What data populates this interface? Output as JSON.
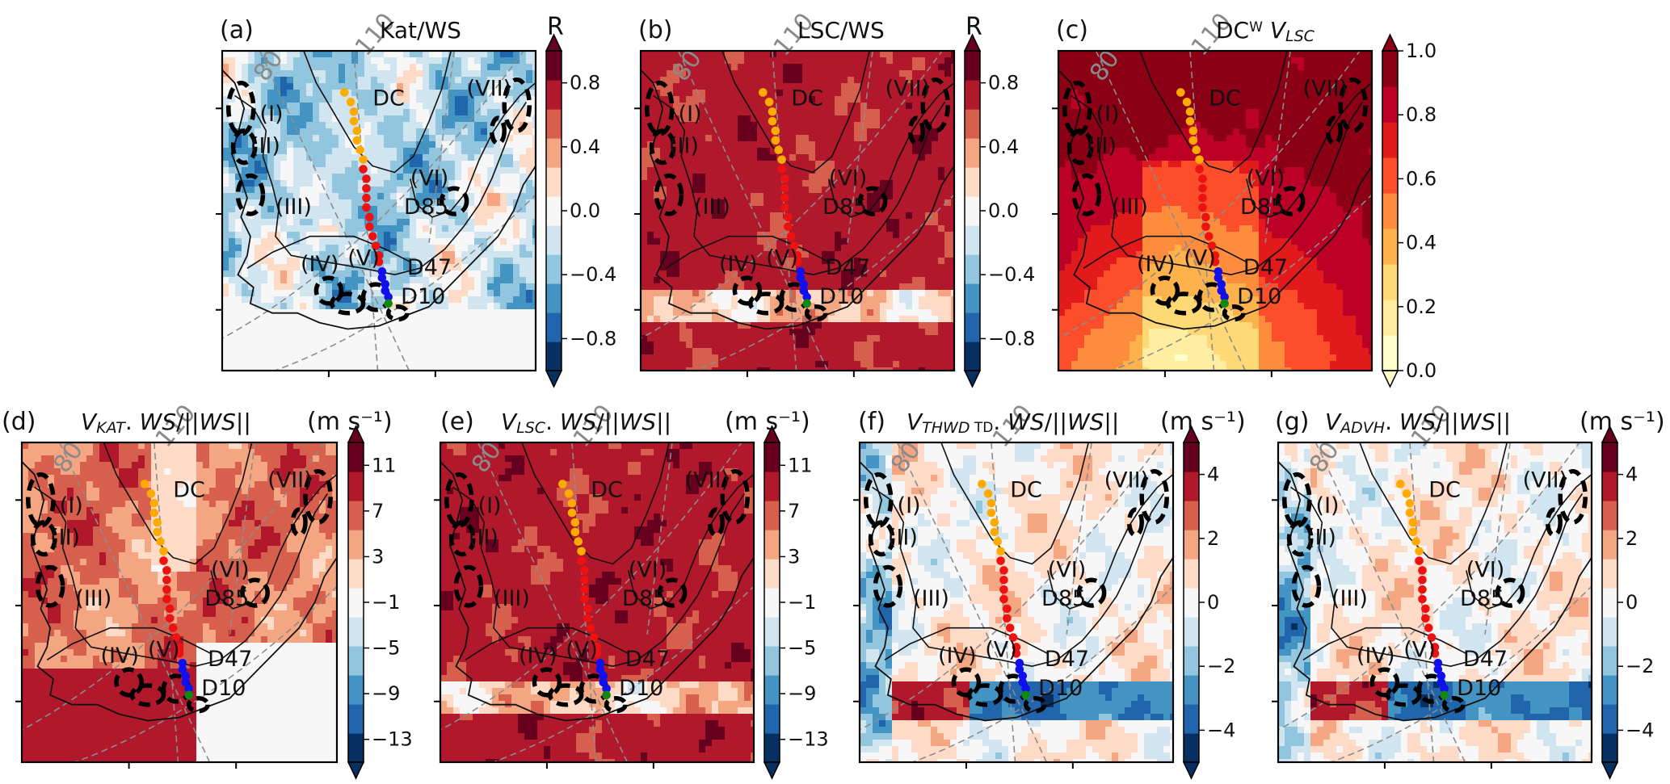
{
  "figure": {
    "panels": [
      {
        "letter": "(a)",
        "title": "Kat/WS",
        "title_segments": [
          {
            "t": "Kat/WS",
            "style": "plain"
          }
        ],
        "colorbar": {
          "label": "R",
          "ticks": [
            "0.8",
            "0.4",
            "0.0",
            "−0.4",
            "−0.8"
          ],
          "extend": "both",
          "cmap": "RdBu_r"
        },
        "field_mode": "weak"
      },
      {
        "letter": "(b)",
        "title": "LSC/WS",
        "title_segments": [
          {
            "t": "LSC/WS",
            "style": "plain"
          }
        ],
        "colorbar": {
          "label": "R",
          "ticks": [
            "0.8",
            "0.4",
            "0.0",
            "−0.4",
            "−0.8"
          ],
          "extend": "both",
          "cmap": "RdBu_r"
        },
        "field_mode": "strong"
      },
      {
        "letter": "(c)",
        "title": "DCʷ V_LSC",
        "title_segments": [
          {
            "t": "DC",
            "style": "plain"
          },
          {
            "t": "W",
            "style": "sup"
          },
          {
            "t": " V",
            "style": "italic"
          },
          {
            "t": "LSC",
            "style": "italic-sub"
          }
        ],
        "colorbar": {
          "label": "",
          "ticks": [
            "1.0",
            "0.8",
            "0.6",
            "0.4",
            "0.2",
            "0.0"
          ],
          "extend": "both",
          "cmap": "YlOrRd"
        },
        "field_mode": "yellow"
      },
      {
        "letter": "(d)",
        "title": "V_KAT⃗ . WS⃗ /||WS⃗||",
        "title_segments": [
          {
            "t": "V",
            "style": "italic"
          },
          {
            "t": "KAT",
            "style": "italic-sub"
          },
          {
            "t": ". ",
            "style": "plain"
          },
          {
            "t": "WS",
            "style": "italic"
          },
          {
            "t": "/||",
            "style": "plain"
          },
          {
            "t": "WS",
            "style": "italic"
          },
          {
            "t": "||",
            "style": "plain"
          }
        ],
        "colorbar": {
          "label": "(m s⁻¹)",
          "ticks": [
            "11",
            "7",
            "3",
            "−1",
            "−5",
            "−9",
            "−13"
          ],
          "extend": "both",
          "cmap": "RdBu_r"
        },
        "field_mode": "katabatic"
      },
      {
        "letter": "(e)",
        "title": "V_LSC⃗ . WS⃗ /||WS⃗||",
        "title_segments": [
          {
            "t": "V",
            "style": "italic"
          },
          {
            "t": "LSC",
            "style": "italic-sub"
          },
          {
            "t": ". ",
            "style": "plain"
          },
          {
            "t": "WS",
            "style": "italic"
          },
          {
            "t": "/||",
            "style": "plain"
          },
          {
            "t": "WS",
            "style": "italic"
          },
          {
            "t": "||",
            "style": "plain"
          }
        ],
        "colorbar": {
          "label": "(m s⁻¹)",
          "ticks": [
            "11",
            "7",
            "3",
            "−1",
            "−5",
            "−9",
            "−13"
          ],
          "extend": "both",
          "cmap": "RdBu_r"
        },
        "field_mode": "strong"
      },
      {
        "letter": "(f)",
        "title": "V_THWD TD⃗ . WS⃗ /||WS⃗||",
        "title_segments": [
          {
            "t": "V",
            "style": "italic"
          },
          {
            "t": "THWD",
            "style": "italic-sub"
          },
          {
            "t": " TD",
            "style": "sub"
          },
          {
            "t": ". ",
            "style": "plain"
          },
          {
            "t": "WS",
            "style": "italic"
          },
          {
            "t": "/||",
            "style": "plain"
          },
          {
            "t": "WS",
            "style": "italic"
          },
          {
            "t": "||",
            "style": "plain"
          }
        ],
        "colorbar": {
          "label": "(m s⁻¹)",
          "ticks": [
            "4",
            "2",
            "0",
            "−2",
            "−4"
          ],
          "extend": "both",
          "cmap": "RdBu_r"
        },
        "field_mode": "neutral"
      },
      {
        "letter": "(g)",
        "title": "V_ADVH⃗ . WS⃗ /||WS⃗||",
        "title_segments": [
          {
            "t": "V",
            "style": "italic"
          },
          {
            "t": "ADVH",
            "style": "italic-sub"
          },
          {
            "t": ". ",
            "style": "plain"
          },
          {
            "t": "WS",
            "style": "italic"
          },
          {
            "t": "/||",
            "style": "plain"
          },
          {
            "t": "WS",
            "style": "italic"
          },
          {
            "t": "||",
            "style": "plain"
          }
        ],
        "colorbar": {
          "label": "(m s⁻¹)",
          "ticks": [
            "4",
            "2",
            "0",
            "−2",
            "−4"
          ],
          "extend": "both",
          "cmap": "RdBu_r"
        },
        "field_mode": "neutral"
      }
    ],
    "map_labels": {
      "sites": [
        "DC",
        "D85",
        "D47",
        "D10"
      ],
      "regions": [
        "(I)",
        "(II)",
        "(III)",
        "(IV)",
        "(V)",
        "(VI)",
        "(VII)"
      ],
      "meridians": [
        "80",
        "110"
      ]
    },
    "traverse_colors": {
      "upper": "#ffaa00",
      "middle": "#ee1111",
      "lower": "#1010ee",
      "end": "#118811"
    }
  },
  "chart_data": [
    {
      "type": "heatmap",
      "title": "Kat/WS",
      "panel": "(a)",
      "colorbar_label": "R",
      "colorbar_ticks": [
        0.8,
        0.4,
        0.0,
        -0.4,
        -0.8
      ],
      "scale_range": [
        -1,
        1
      ],
      "cmap": "RdBu_r",
      "annotations": [
        "DC",
        "D85",
        "D47",
        "D10",
        "(I)",
        "(II)",
        "(III)",
        "(IV)",
        "(V)",
        "(VI)",
        "(VII)",
        "80",
        "110"
      ]
    },
    {
      "type": "heatmap",
      "title": "LSC/WS",
      "panel": "(b)",
      "colorbar_label": "R",
      "colorbar_ticks": [
        0.8,
        0.4,
        0.0,
        -0.4,
        -0.8
      ],
      "scale_range": [
        -1,
        1
      ],
      "cmap": "RdBu_r",
      "annotations": [
        "DC",
        "D85",
        "D47",
        "D10",
        "(I)",
        "(II)",
        "(III)",
        "(IV)",
        "(V)",
        "(VI)",
        "(VII)",
        "80",
        "110"
      ]
    },
    {
      "type": "heatmap",
      "title": "DC^W V_LSC",
      "panel": "(c)",
      "colorbar_ticks": [
        1.0,
        0.8,
        0.6,
        0.4,
        0.2,
        0.0
      ],
      "scale_range": [
        0,
        1
      ],
      "cmap": "YlOrRd",
      "annotations": [
        "DC",
        "D85",
        "D47",
        "D10",
        "(I)",
        "(II)",
        "(III)",
        "(IV)",
        "(V)",
        "(VI)",
        "(VII)",
        "80",
        "110"
      ]
    },
    {
      "type": "heatmap",
      "title": "V_KAT . WS/||WS||",
      "panel": "(d)",
      "colorbar_label": "(m s-1)",
      "colorbar_ticks": [
        11,
        7,
        3,
        -1,
        -5,
        -9,
        -13
      ],
      "scale_range": [
        -13,
        13
      ],
      "cmap": "RdBu_r",
      "annotations": [
        "DC",
        "D85",
        "D47",
        "D10",
        "(I)",
        "(II)",
        "(III)",
        "(IV)",
        "(V)",
        "(VI)",
        "(VII)",
        "80",
        "110"
      ]
    },
    {
      "type": "heatmap",
      "title": "V_LSC . WS/||WS||",
      "panel": "(e)",
      "colorbar_label": "(m s-1)",
      "colorbar_ticks": [
        11,
        7,
        3,
        -1,
        -5,
        -9,
        -13
      ],
      "scale_range": [
        -13,
        13
      ],
      "cmap": "RdBu_r",
      "annotations": [
        "DC",
        "D85",
        "D47",
        "D10",
        "(I)",
        "(II)",
        "(III)",
        "(IV)",
        "(V)",
        "(VI)",
        "(VII)",
        "80",
        "110"
      ]
    },
    {
      "type": "heatmap",
      "title": "V_THWD TD . WS/||WS||",
      "panel": "(f)",
      "colorbar_label": "(m s-1)",
      "colorbar_ticks": [
        4,
        2,
        0,
        -2,
        -4
      ],
      "scale_range": [
        -5,
        5
      ],
      "cmap": "RdBu_r",
      "annotations": [
        "DC",
        "D85",
        "D47",
        "D10",
        "(I)",
        "(II)",
        "(III)",
        "(IV)",
        "(V)",
        "(VI)",
        "(VII)",
        "80",
        "110"
      ]
    },
    {
      "type": "heatmap",
      "title": "V_ADVH . WS/||WS||",
      "panel": "(g)",
      "colorbar_label": "(m s-1)",
      "colorbar_ticks": [
        4,
        2,
        0,
        -2,
        -4
      ],
      "scale_range": [
        -5,
        5
      ],
      "cmap": "RdBu_r",
      "annotations": [
        "DC",
        "D85",
        "D47",
        "D10",
        "(I)",
        "(II)",
        "(III)",
        "(IV)",
        "(V)",
        "(VI)",
        "(VII)",
        "80",
        "110"
      ]
    }
  ]
}
